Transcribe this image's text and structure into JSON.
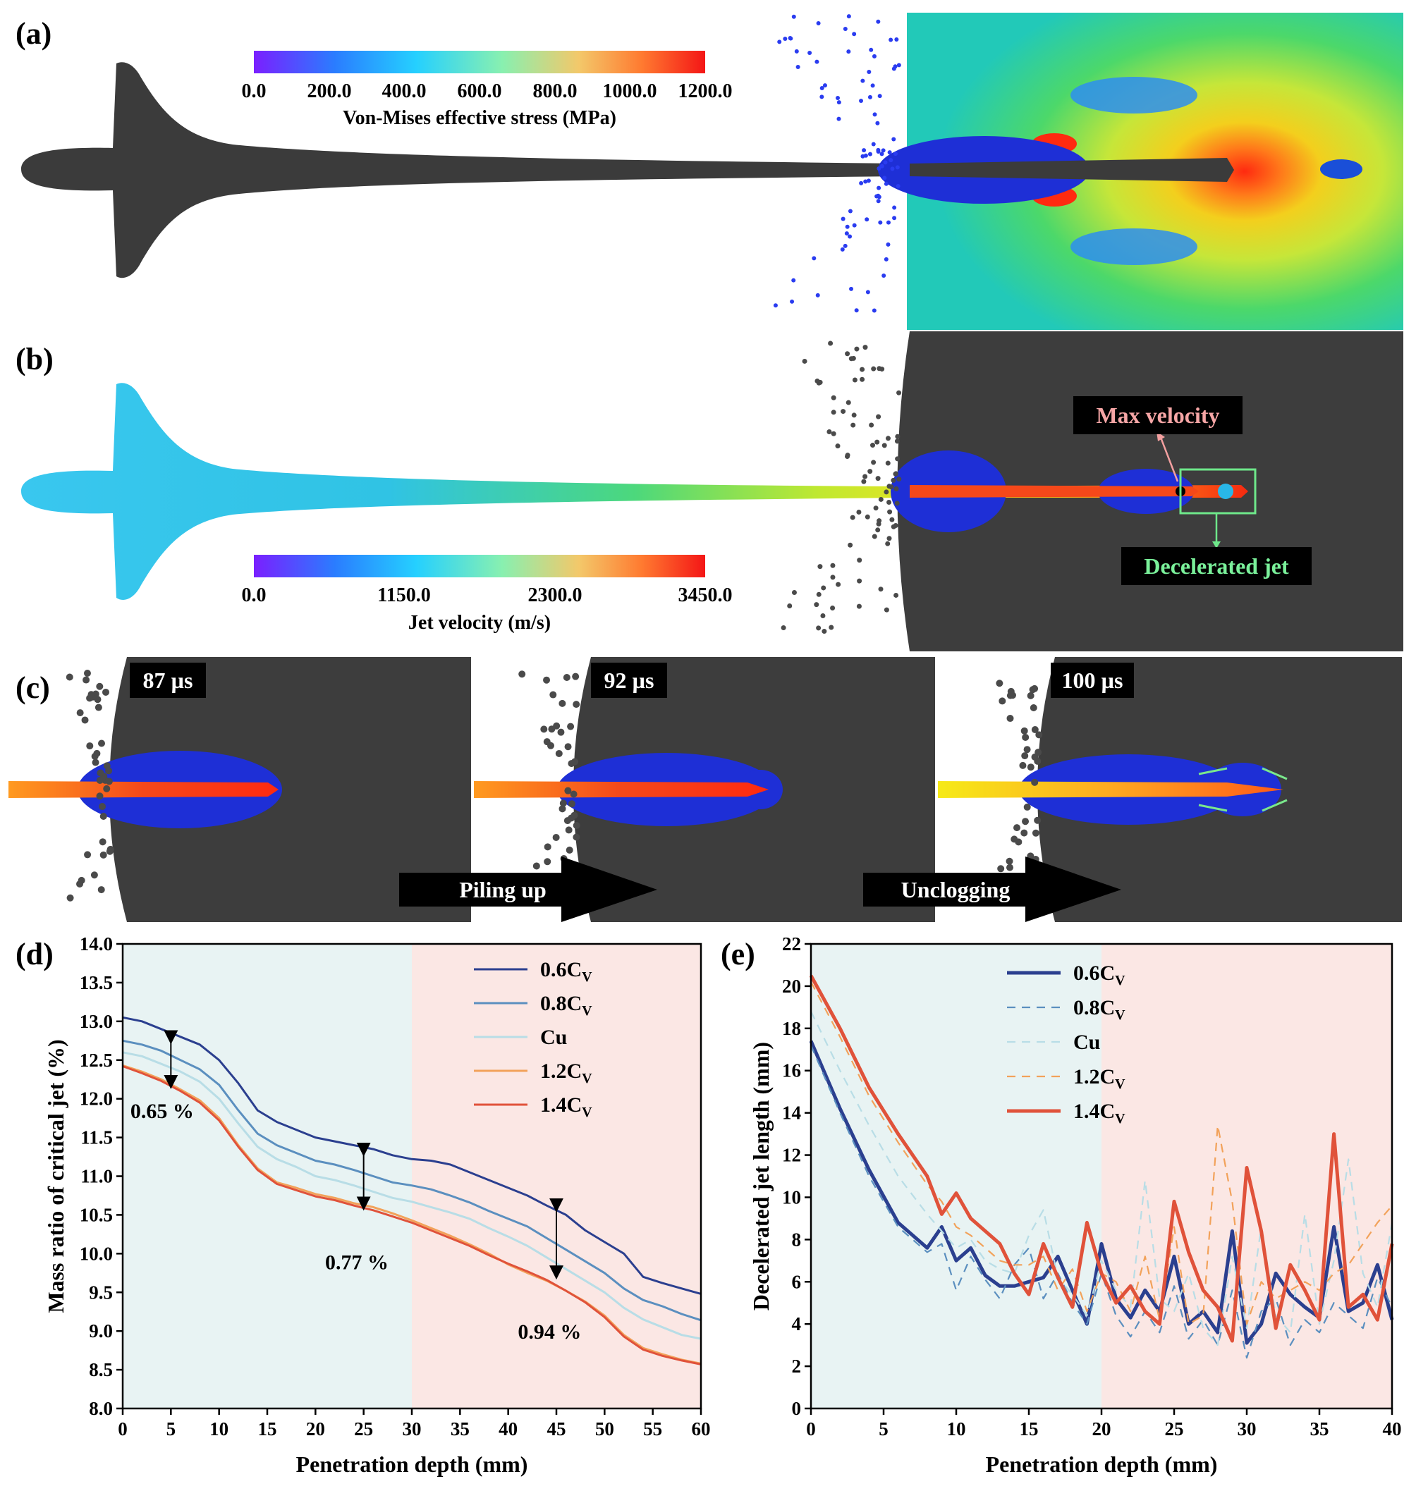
{
  "panel_labels": {
    "a": "(a)",
    "b": "(b)",
    "c": "(c)",
    "d": "(d)",
    "e": "(e)"
  },
  "colorbar_a": {
    "ticks": [
      "0.0",
      "200.0",
      "400.0",
      "600.0",
      "800.0",
      "1000.0",
      "1200.0"
    ],
    "title": "Von-Mises effective stress (MPa)"
  },
  "colorbar_b": {
    "ticks": [
      "0.0",
      "1150.0",
      "2300.0",
      "3450.0"
    ],
    "title": "Jet velocity (m/s)"
  },
  "annotations_b": {
    "max_velocity": "Max velocity",
    "decelerated_jet": "Decelerated jet"
  },
  "panel_c": {
    "times": [
      "87 µs",
      "92 µs",
      "100 µs"
    ],
    "arrows": [
      "Piling up",
      "Unclogging"
    ]
  },
  "colors": {
    "s06": "#2b3f8f",
    "s08": "#5b8fbf",
    "cu": "#b8dde6",
    "s12": "#f2a25a",
    "s14": "#e0523a",
    "bg_left": "#e8f3f3",
    "bg_right": "#fbe7e4",
    "sim_bg": "#3d3d3d"
  },
  "chart_data": [
    {
      "type": "line",
      "id": "d",
      "xlabel": "Penetration depth (mm)",
      "ylabel": "Mass ratio of critical jet (%)",
      "xlim": [
        0,
        60
      ],
      "ylim": [
        8.0,
        14.0
      ],
      "xticks": [
        0,
        5,
        10,
        15,
        20,
        25,
        30,
        35,
        40,
        45,
        50,
        55,
        60
      ],
      "yticks": [
        "8.0",
        "8.5",
        "9.0",
        "9.5",
        "10.0",
        "10.5",
        "11.0",
        "11.5",
        "12.0",
        "12.5",
        "13.0",
        "13.5",
        "14.0"
      ],
      "legend": [
        "0.6C",
        "0.8C",
        "Cu",
        "1.2C",
        "1.4C"
      ],
      "legend_sub": "V",
      "annotations": [
        {
          "text": "0.65 %",
          "x": 5,
          "y1": 12.83,
          "y2": 12.18,
          "tx": 0.8,
          "ty": 11.75
        },
        {
          "text": "0.77 %",
          "x": 25,
          "y1": 11.38,
          "y2": 10.61,
          "tx": 21,
          "ty": 9.8
        },
        {
          "text": "0.94 %",
          "x": 45,
          "y1": 10.66,
          "y2": 9.72,
          "tx": 41,
          "ty": 8.9
        }
      ],
      "x": [
        0,
        2,
        4,
        6,
        8,
        10,
        12,
        14,
        16,
        18,
        20,
        22,
        24,
        26,
        28,
        30,
        32,
        34,
        36,
        38,
        40,
        42,
        44,
        46,
        48,
        50,
        52,
        54,
        56,
        58,
        60
      ],
      "series": [
        {
          "name": "0.6C",
          "style": "solid",
          "values": [
            13.05,
            13.0,
            12.9,
            12.8,
            12.7,
            12.5,
            12.2,
            11.85,
            11.7,
            11.6,
            11.5,
            11.45,
            11.4,
            11.35,
            11.27,
            11.22,
            11.2,
            11.15,
            11.05,
            10.95,
            10.85,
            10.75,
            10.62,
            10.5,
            10.3,
            10.15,
            10.0,
            9.7,
            9.62,
            9.55,
            9.48
          ]
        },
        {
          "name": "0.8C",
          "style": "solid",
          "values": [
            12.75,
            12.7,
            12.62,
            12.5,
            12.38,
            12.18,
            11.85,
            11.55,
            11.4,
            11.3,
            11.2,
            11.15,
            11.08,
            11.0,
            10.92,
            10.88,
            10.83,
            10.75,
            10.66,
            10.55,
            10.45,
            10.35,
            10.2,
            10.05,
            9.9,
            9.75,
            9.55,
            9.4,
            9.32,
            9.22,
            9.14
          ]
        },
        {
          "name": "Cu",
          "style": "solid",
          "values": [
            12.6,
            12.55,
            12.45,
            12.35,
            12.22,
            12.0,
            11.68,
            11.38,
            11.22,
            11.12,
            11.0,
            10.95,
            10.88,
            10.8,
            10.72,
            10.67,
            10.6,
            10.53,
            10.45,
            10.33,
            10.22,
            10.1,
            9.95,
            9.8,
            9.65,
            9.5,
            9.3,
            9.15,
            9.05,
            8.95,
            8.9
          ]
        },
        {
          "name": "1.2C",
          "style": "solid",
          "values": [
            12.43,
            12.35,
            12.25,
            12.12,
            11.98,
            11.75,
            11.4,
            11.1,
            10.92,
            10.85,
            10.77,
            10.72,
            10.65,
            10.6,
            10.52,
            10.43,
            10.33,
            10.23,
            10.12,
            10.0,
            9.86,
            9.75,
            9.65,
            9.52,
            9.38,
            9.2,
            8.95,
            8.78,
            8.7,
            8.63,
            8.58
          ]
        },
        {
          "name": "1.4C",
          "style": "solid",
          "values": [
            12.42,
            12.33,
            12.23,
            12.1,
            11.95,
            11.72,
            11.38,
            11.08,
            10.9,
            10.82,
            10.74,
            10.69,
            10.62,
            10.56,
            10.48,
            10.4,
            10.3,
            10.2,
            10.1,
            9.98,
            9.87,
            9.77,
            9.66,
            9.52,
            9.37,
            9.18,
            8.93,
            8.76,
            8.68,
            8.62,
            8.57
          ]
        }
      ]
    },
    {
      "type": "line",
      "id": "e",
      "xlabel": "Penetration depth (mm)",
      "ylabel": "Decelerated jet length (mm)",
      "xlim": [
        0,
        40
      ],
      "ylim": [
        0,
        22
      ],
      "xticks": [
        0,
        5,
        10,
        15,
        20,
        25,
        30,
        35,
        40
      ],
      "yticks": [
        0,
        2,
        4,
        6,
        8,
        10,
        12,
        14,
        16,
        18,
        20,
        22
      ],
      "legend": [
        "0.6C",
        "0.8C",
        "Cu",
        "1.2C",
        "1.4C"
      ],
      "legend_sub": "V",
      "series": [
        {
          "name": "0.6C",
          "style": "solid",
          "x": [
            0,
            2,
            4,
            6,
            8,
            9,
            10,
            11,
            12,
            13,
            14,
            15,
            16,
            17,
            18,
            19,
            20,
            21,
            22,
            23,
            24,
            25,
            26,
            27,
            28,
            29,
            30,
            31,
            32,
            33,
            34,
            35,
            36,
            37,
            38,
            39,
            40
          ],
          "values": [
            17.4,
            14.2,
            11.3,
            8.8,
            7.6,
            8.6,
            7.0,
            7.6,
            6.3,
            5.8,
            5.8,
            6.0,
            6.2,
            7.2,
            5.6,
            4.0,
            7.8,
            5.2,
            4.3,
            5.6,
            4.6,
            7.2,
            4.0,
            4.6,
            3.6,
            8.4,
            3.1,
            4.0,
            6.4,
            5.4,
            4.8,
            4.3,
            8.6,
            4.6,
            5.0,
            6.8,
            4.2
          ]
        },
        {
          "name": "0.8C",
          "style": "dashed",
          "x": [
            0,
            2,
            4,
            6,
            8,
            9,
            10,
            11,
            12,
            13,
            14,
            15,
            16,
            17,
            18,
            19,
            20,
            21,
            22,
            23,
            24,
            25,
            26,
            27,
            28,
            29,
            30,
            31,
            32,
            33,
            34,
            35,
            36,
            37,
            38,
            39,
            40
          ],
          "values": [
            17.2,
            14.0,
            11.0,
            8.6,
            7.4,
            7.8,
            5.6,
            7.2,
            6.1,
            5.2,
            6.8,
            7.6,
            5.2,
            6.4,
            5.0,
            4.0,
            6.4,
            4.4,
            3.4,
            4.6,
            3.6,
            5.8,
            3.3,
            4.2,
            3.0,
            5.6,
            2.4,
            4.6,
            5.2,
            3.0,
            4.2,
            3.6,
            5.0,
            4.4,
            3.8,
            6.2,
            4.8
          ]
        },
        {
          "name": "Cu",
          "style": "dashed",
          "x": [
            0,
            2,
            4,
            6,
            8,
            9,
            10,
            11,
            12,
            13,
            14,
            15,
            16,
            17,
            18,
            19,
            20,
            21,
            22,
            23,
            24,
            25,
            26,
            27,
            28,
            29,
            30,
            31,
            32,
            33,
            34,
            35,
            36,
            37,
            38,
            39,
            40
          ],
          "values": [
            18.8,
            16.0,
            13.4,
            11.0,
            9.2,
            8.4,
            7.6,
            8.0,
            7.0,
            6.6,
            6.4,
            8.2,
            9.4,
            6.2,
            5.4,
            4.4,
            7.0,
            5.6,
            4.8,
            10.8,
            5.2,
            4.6,
            6.4,
            3.8,
            3.0,
            7.2,
            3.8,
            8.6,
            4.4,
            3.6,
            9.2,
            4.0,
            7.0,
            11.8,
            6.4,
            4.8,
            8.8
          ]
        },
        {
          "name": "1.2C",
          "style": "dashed",
          "x": [
            0,
            2,
            4,
            6,
            8,
            9,
            10,
            11,
            12,
            13,
            14,
            15,
            16,
            17,
            18,
            19,
            20,
            21,
            22,
            23,
            24,
            25,
            26,
            27,
            28,
            29,
            30,
            31,
            32,
            33,
            34,
            35,
            36,
            37,
            38,
            39,
            40
          ],
          "values": [
            20.2,
            17.6,
            14.8,
            12.6,
            10.6,
            9.8,
            8.6,
            8.2,
            7.6,
            7.0,
            6.8,
            6.8,
            7.2,
            5.6,
            6.6,
            4.6,
            6.4,
            6.0,
            4.6,
            7.2,
            4.2,
            8.6,
            4.0,
            4.4,
            13.4,
            9.8,
            4.0,
            6.0,
            5.2,
            5.6,
            6.0,
            5.6,
            6.4,
            6.8,
            7.8,
            8.8,
            9.6
          ]
        },
        {
          "name": "1.4C",
          "style": "solid",
          "x": [
            0,
            2,
            4,
            6,
            8,
            9,
            10,
            11,
            12,
            13,
            14,
            15,
            16,
            17,
            18,
            19,
            20,
            21,
            22,
            23,
            24,
            25,
            26,
            27,
            28,
            29,
            30,
            31,
            32,
            33,
            34,
            35,
            36,
            37,
            38,
            39,
            40
          ],
          "values": [
            20.5,
            18.0,
            15.2,
            13.0,
            11.0,
            9.2,
            10.2,
            9.0,
            8.4,
            7.8,
            6.4,
            5.4,
            7.8,
            6.2,
            4.8,
            8.8,
            6.4,
            5.0,
            5.8,
            4.6,
            4.0,
            9.8,
            7.4,
            5.6,
            4.8,
            3.2,
            11.4,
            8.4,
            3.8,
            6.8,
            5.6,
            4.2,
            13.0,
            4.8,
            5.4,
            4.2,
            7.8
          ]
        }
      ]
    }
  ]
}
